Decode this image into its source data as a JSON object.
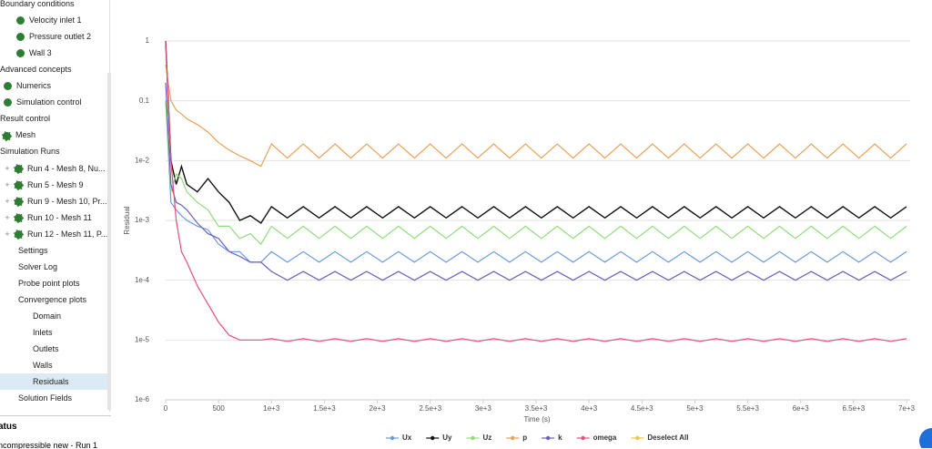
{
  "sidebar": {
    "items": [
      "Boundary conditions",
      "Velocity inlet 1",
      "Pressure outlet 2",
      "Wall 3",
      "Advanced concepts",
      "Numerics",
      "Simulation control",
      "Result control",
      "Mesh",
      "Simulation Runs",
      "Run 4 - Mesh 8, Nu...",
      "Run 5 - Mesh 9",
      "Run 9 - Mesh 10, Pr...",
      "Run 10 - Mesh 11",
      "Run 12 - Mesh 11, P...",
      "Settings",
      "Solver Log",
      "Probe point plots",
      "Convergence plots",
      "Domain",
      "Inlets",
      "Outlets",
      "Walls",
      "Residuals",
      "Solution Fields"
    ],
    "status_header": "atus",
    "status_item": "ncompressible new - Run 1"
  },
  "chart_data": {
    "type": "line",
    "y_label": "Residual",
    "x_label": "Time (s)",
    "log_y": true,
    "grid": true,
    "xlim": [
      0,
      7000
    ],
    "ylim": [
      1e-06,
      1
    ],
    "xticks": [
      0,
      500,
      {
        "value": 1000,
        "label": "1e+3"
      },
      {
        "value": 1500,
        "label": "1.5e+3"
      },
      {
        "value": 2000,
        "label": "2e+3"
      },
      {
        "value": 2500,
        "label": "2.5e+3"
      },
      {
        "value": 3000,
        "label": "3e+3"
      },
      {
        "value": 3500,
        "label": "3.5e+3"
      },
      {
        "value": 4000,
        "label": "4e+3"
      },
      {
        "value": 4500,
        "label": "4.5e+3"
      },
      {
        "value": 5000,
        "label": "5e+3"
      },
      {
        "value": 5500,
        "label": "5.5e+3"
      },
      {
        "value": 6000,
        "label": "6e+3"
      },
      {
        "value": 6500,
        "label": "6.5e+3"
      },
      {
        "value": 7000,
        "label": "7e+3"
      }
    ],
    "yticks": [
      1,
      0.1,
      {
        "value": 0.01,
        "label": "1e-2"
      },
      {
        "value": 0.001,
        "label": "1e-3"
      },
      {
        "value": 0.0001,
        "label": "1e-4"
      },
      {
        "value": 1e-05,
        "label": "1e-5"
      },
      {
        "value": 1e-06,
        "label": "1e-6"
      }
    ],
    "x": [
      0,
      50,
      100,
      150,
      200,
      300,
      400,
      500,
      600,
      700,
      800,
      900,
      1000,
      1150,
      1300,
      1450,
      1600,
      1750,
      1900,
      2050,
      2200,
      2350,
      2500,
      2650,
      2800,
      2950,
      3100,
      3250,
      3400,
      3550,
      3700,
      3850,
      4000,
      4150,
      4300,
      4450,
      4600,
      4750,
      4900,
      5050,
      5200,
      5350,
      5500,
      5650,
      5800,
      5950,
      6100,
      6250,
      6400,
      6550,
      6700,
      6850,
      7000
    ],
    "series": [
      {
        "name": "Ux",
        "color": "#6a9bd8",
        "values": [
          0.1,
          0.002,
          0.0015,
          0.0012,
          0.001,
          0.0008,
          0.0007,
          0.0004,
          0.0003,
          0.0003,
          0.0002,
          0.0002,
          0.0003,
          0.0002,
          0.0003,
          0.0002,
          0.0003,
          0.0002,
          0.0003,
          0.0002,
          0.0003,
          0.0002,
          0.0003,
          0.0002,
          0.0003,
          0.0002,
          0.0003,
          0.0002,
          0.0003,
          0.0002,
          0.0003,
          0.0002,
          0.0003,
          0.0002,
          0.0003,
          0.0002,
          0.0003,
          0.0002,
          0.0003,
          0.0002,
          0.0003,
          0.0002,
          0.0003,
          0.0002,
          0.0003,
          0.0002,
          0.0003,
          0.0002,
          0.0003,
          0.0002,
          0.0003,
          0.0002,
          0.0003
        ]
      },
      {
        "name": "Uy",
        "color": "#111111",
        "values": [
          1,
          0.01,
          0.004,
          0.008,
          0.004,
          0.003,
          0.005,
          0.003,
          0.002,
          0.001,
          0.0012,
          0.0009,
          0.0017,
          0.0011,
          0.0017,
          0.0011,
          0.0017,
          0.0011,
          0.0017,
          0.0011,
          0.0017,
          0.0011,
          0.0017,
          0.0011,
          0.0017,
          0.0011,
          0.0017,
          0.0011,
          0.0017,
          0.0011,
          0.0017,
          0.0011,
          0.0017,
          0.0011,
          0.0017,
          0.0011,
          0.0017,
          0.0011,
          0.0017,
          0.0011,
          0.0017,
          0.0011,
          0.0017,
          0.0011,
          0.0017,
          0.0011,
          0.0017,
          0.0011,
          0.0017,
          0.0011,
          0.0017,
          0.0011,
          0.0017
        ]
      },
      {
        "name": "Uz",
        "color": "#8fdc7a",
        "values": [
          0.1,
          0.003,
          0.006,
          0.005,
          0.003,
          0.002,
          0.0015,
          0.0008,
          0.0008,
          0.0005,
          0.0006,
          0.0004,
          0.0008,
          0.0005,
          0.0008,
          0.0005,
          0.0008,
          0.0005,
          0.0008,
          0.0005,
          0.0008,
          0.0005,
          0.0008,
          0.0005,
          0.0008,
          0.0005,
          0.0008,
          0.0005,
          0.0008,
          0.0005,
          0.0008,
          0.0005,
          0.0008,
          0.0005,
          0.0008,
          0.0005,
          0.0008,
          0.0005,
          0.0008,
          0.0005,
          0.0008,
          0.0005,
          0.0008,
          0.0005,
          0.0008,
          0.0005,
          0.0008,
          0.0005,
          0.0008,
          0.0005,
          0.0008,
          0.0005,
          0.0008
        ]
      },
      {
        "name": "p",
        "color": "#e8a15a",
        "values": [
          0.4,
          0.1,
          0.07,
          0.06,
          0.05,
          0.04,
          0.03,
          0.02,
          0.015,
          0.012,
          0.01,
          0.008,
          0.019,
          0.011,
          0.019,
          0.011,
          0.019,
          0.011,
          0.019,
          0.011,
          0.019,
          0.011,
          0.019,
          0.011,
          0.019,
          0.011,
          0.019,
          0.011,
          0.019,
          0.011,
          0.019,
          0.011,
          0.019,
          0.011,
          0.019,
          0.011,
          0.019,
          0.011,
          0.019,
          0.011,
          0.019,
          0.011,
          0.019,
          0.011,
          0.019,
          0.011,
          0.019,
          0.011,
          0.019,
          0.011,
          0.019,
          0.011,
          0.019
        ]
      },
      {
        "name": "k",
        "color": "#6a5fbf",
        "values": [
          0.2,
          0.004,
          0.002,
          0.0018,
          0.0015,
          0.0009,
          0.0006,
          0.0005,
          0.0003,
          0.00025,
          0.0002,
          0.0002,
          0.00014,
          0.0001,
          0.00014,
          0.0001,
          0.00014,
          0.0001,
          0.00014,
          0.0001,
          0.00014,
          0.0001,
          0.00014,
          0.0001,
          0.00014,
          0.0001,
          0.00014,
          0.0001,
          0.00014,
          0.0001,
          0.00014,
          0.0001,
          0.00014,
          0.0001,
          0.00014,
          0.0001,
          0.00014,
          0.0001,
          0.00014,
          0.0001,
          0.00014,
          0.0001,
          0.00014,
          0.0001,
          0.00014,
          0.0001,
          0.00014,
          0.0001,
          0.00014,
          0.0001,
          0.00014,
          0.0001,
          0.00014
        ]
      },
      {
        "name": "omega",
        "color": "#e0507a",
        "values": [
          1,
          0.01,
          0.001,
          0.0003,
          0.0002,
          8e-05,
          4e-05,
          2e-05,
          1.2e-05,
          1e-05,
          1e-05,
          1e-05,
          1.05e-05,
          9.5e-06,
          1.05e-05,
          9.5e-06,
          1.05e-05,
          9.5e-06,
          1.05e-05,
          9.5e-06,
          1.05e-05,
          9.5e-06,
          1.05e-05,
          9.5e-06,
          1.05e-05,
          9.5e-06,
          1.05e-05,
          9.5e-06,
          1.05e-05,
          9.5e-06,
          1.05e-05,
          9.5e-06,
          1.05e-05,
          9.5e-06,
          1.05e-05,
          9.5e-06,
          1.05e-05,
          9.5e-06,
          1.05e-05,
          9.5e-06,
          1.05e-05,
          9.5e-06,
          1.05e-05,
          9.5e-06,
          1.05e-05,
          9.5e-06,
          1.05e-05,
          9.5e-06,
          1.05e-05,
          9.5e-06,
          1.05e-05,
          9.5e-06,
          1.05e-05
        ]
      }
    ],
    "legend_action": {
      "label": "Deselect All",
      "color": "#e6c84a"
    }
  }
}
